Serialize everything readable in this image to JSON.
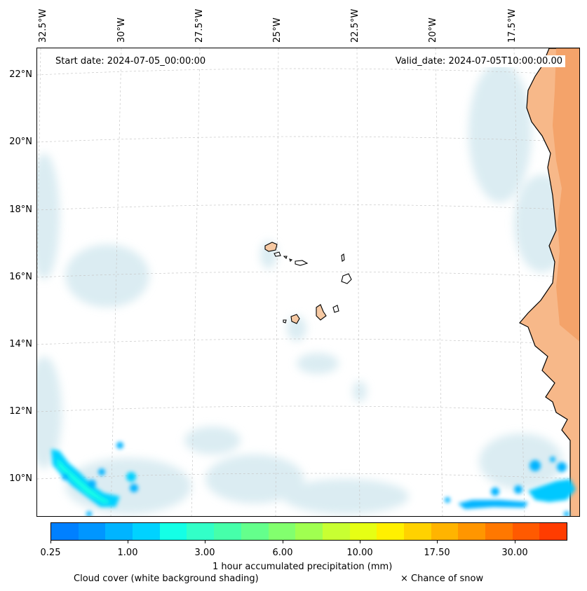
{
  "map": {
    "start_date": "Start date: 2024-07-05_00:00:00",
    "valid_date": "Valid_date: 2024-07-05T10:00:00.00",
    "lon_labels": [
      "32.5°W",
      "30°W",
      "27.5°W",
      "25°W",
      "22.5°W",
      "20°W",
      "17.5°W"
    ],
    "lat_labels": [
      "22°N",
      "20°N",
      "18°N",
      "16°N",
      "14°N",
      "12°N",
      "10°N"
    ],
    "land_color": "#f4a06a",
    "cloud_color": "#bfe0ea"
  },
  "colorbar": {
    "label": "1 hour accumulated precipitation (mm)",
    "tick_labels": [
      "0.25",
      "1.00",
      "3.00",
      "6.00",
      "10.00",
      "17.50",
      "30.00"
    ],
    "colors": [
      "#0080ff",
      "#0096ff",
      "#00b4ff",
      "#00d2ff",
      "#14ffe6",
      "#32ffc8",
      "#46ffaa",
      "#64ff8c",
      "#82ff6e",
      "#a0ff50",
      "#c8ff32",
      "#e6ff14",
      "#fff000",
      "#ffd200",
      "#ffb400",
      "#ff9600",
      "#ff7800",
      "#ff5a00",
      "#ff3c00"
    ]
  },
  "legend": {
    "cloud_cover": "Cloud cover (white background shading)",
    "snow": "× Chance of snow"
  }
}
